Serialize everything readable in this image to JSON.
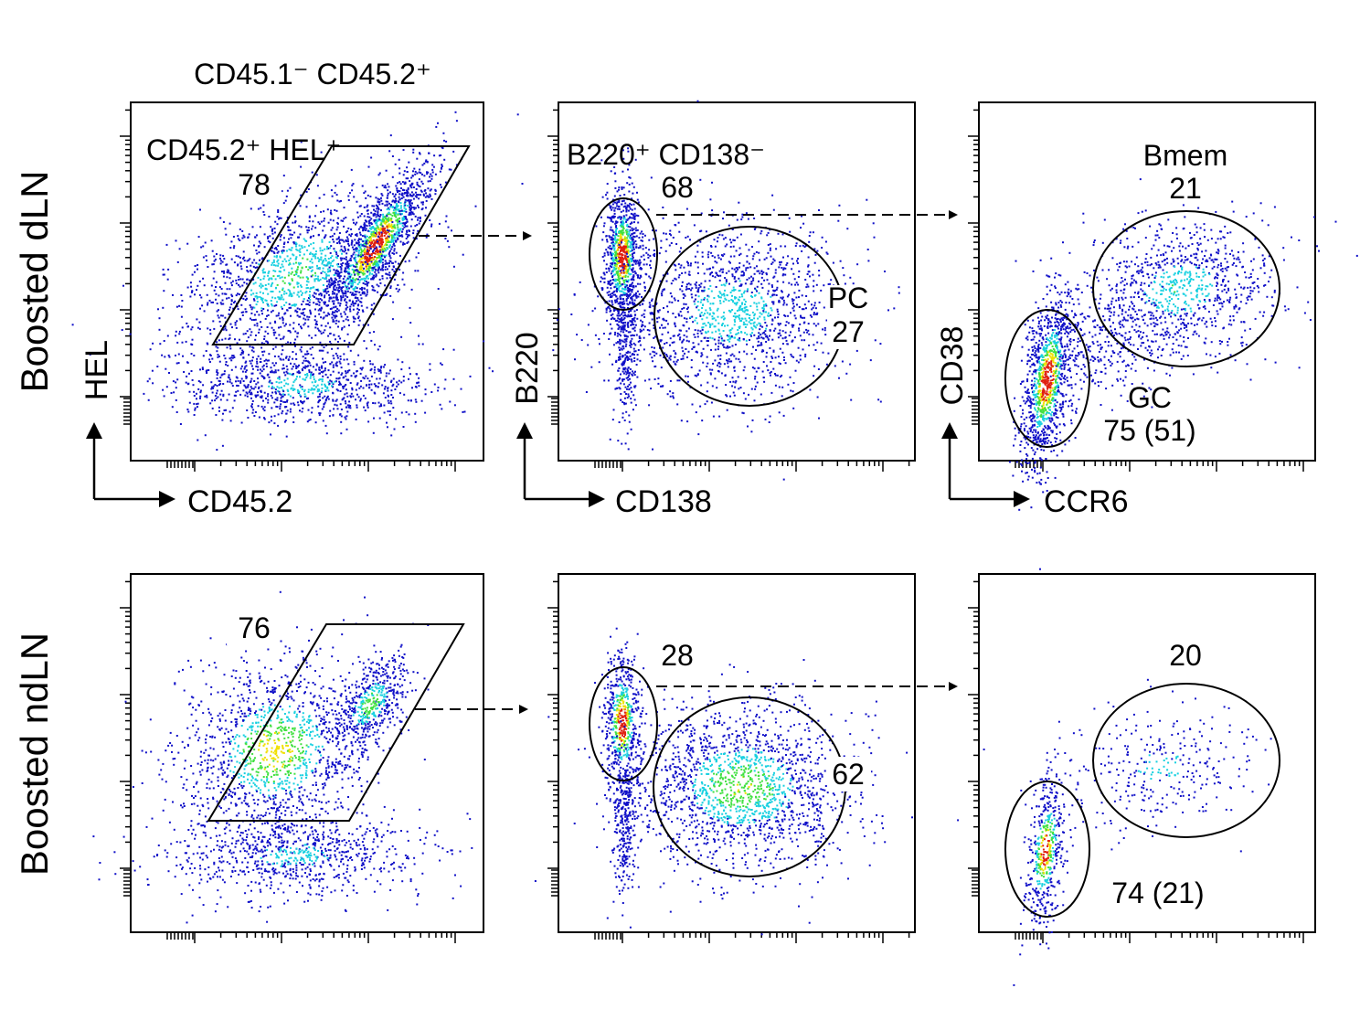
{
  "header": {
    "population": "CD45.1⁻ CD45.2⁺"
  },
  "rows": [
    {
      "label": "Boosted dLN"
    },
    {
      "label": "Boosted ndLN"
    }
  ],
  "axes": {
    "hel": "HEL",
    "cd45_2": "CD45.2",
    "b220": "B220",
    "cd138": "CD138",
    "cd38": "CD38",
    "ccr6": "CCR6"
  },
  "gates": {
    "dln": {
      "hel_gate_name": "CD45.2⁺ HEL⁺",
      "hel_gate_pct": "78",
      "b220_gate_name": "B220⁺ CD138⁻",
      "b220_gate_pct": "68",
      "pc_name": "PC",
      "pc_pct": "27",
      "bmem_name": "Bmem",
      "bmem_pct": "21",
      "gc_name": "GC",
      "gc_pct": "75 (51)"
    },
    "ndln": {
      "hel_gate_pct": "76",
      "b220_gate_pct": "28",
      "pc_pct": "62",
      "bmem_pct": "20",
      "gc_pct": "74 (21)"
    }
  },
  "colors": {
    "density_low": "#1010c8",
    "density_mid": "#18d0e0",
    "density_high_1": "#40e040",
    "density_high_2": "#f0e000",
    "density_peak": "#e02010",
    "frame": "#000000"
  },
  "chart_data": [
    {
      "type": "scatter",
      "panel": "dLN CD45.2 vs HEL",
      "xlabel": "CD45.2",
      "ylabel": "HEL",
      "x_scale": "log",
      "y_scale": "log",
      "gates": [
        {
          "name": "CD45.2⁺ HEL⁺",
          "shape": "polygon",
          "percent": 78
        }
      ]
    },
    {
      "type": "scatter",
      "panel": "dLN CD138 vs B220",
      "xlabel": "CD138",
      "ylabel": "B220",
      "x_scale": "log",
      "y_scale": "log",
      "gates": [
        {
          "name": "B220⁺ CD138⁻",
          "shape": "ellipse",
          "percent": 68
        },
        {
          "name": "PC",
          "shape": "ellipse",
          "percent": 27
        }
      ]
    },
    {
      "type": "scatter",
      "panel": "dLN CCR6 vs CD38",
      "xlabel": "CCR6",
      "ylabel": "CD38",
      "x_scale": "log",
      "y_scale": "log",
      "gates": [
        {
          "name": "Bmem",
          "shape": "ellipse",
          "percent": 21
        },
        {
          "name": "GC",
          "shape": "ellipse",
          "percent": 75,
          "percent_secondary": 51
        }
      ]
    },
    {
      "type": "scatter",
      "panel": "ndLN CD45.2 vs HEL",
      "x_scale": "log",
      "y_scale": "log",
      "gates": [
        {
          "shape": "polygon",
          "percent": 76
        }
      ]
    },
    {
      "type": "scatter",
      "panel": "ndLN CD138 vs B220",
      "x_scale": "log",
      "y_scale": "log",
      "gates": [
        {
          "shape": "ellipse",
          "percent": 28
        },
        {
          "shape": "ellipse",
          "percent": 62
        }
      ]
    },
    {
      "type": "scatter",
      "panel": "ndLN CCR6 vs CD38",
      "x_scale": "log",
      "y_scale": "log",
      "gates": [
        {
          "shape": "ellipse",
          "percent": 20
        },
        {
          "shape": "ellipse",
          "percent": 74,
          "percent_secondary": 21
        }
      ]
    }
  ]
}
